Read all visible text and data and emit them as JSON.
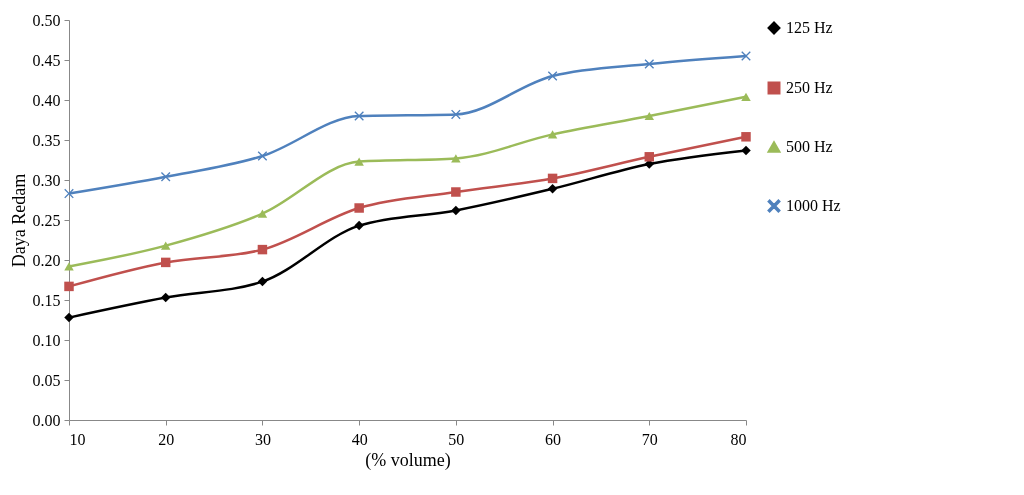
{
  "chart_data": {
    "type": "line",
    "xlabel": "(% volume)",
    "ylabel": "Daya Redam",
    "x": [
      10,
      20,
      30,
      40,
      50,
      60,
      70,
      80
    ],
    "xlim": [
      10,
      80
    ],
    "xticks": [
      10,
      20,
      30,
      40,
      50,
      60,
      70,
      80
    ],
    "ylim": [
      0,
      0.5
    ],
    "yticks": [
      {
        "value": 0,
        "label": "0.00"
      },
      {
        "value": 0.05,
        "label": "0.05"
      },
      {
        "value": 0.1,
        "label": "0.10"
      },
      {
        "value": 0.15,
        "label": "0.15"
      },
      {
        "value": 0.2,
        "label": "0.20"
      },
      {
        "value": 0.25,
        "label": "0.25"
      },
      {
        "value": 0.3,
        "label": "0.30"
      },
      {
        "value": 0.35,
        "label": "0.35"
      },
      {
        "value": 0.4,
        "label": "0.40"
      },
      {
        "value": 0.45,
        "label": "0.45"
      },
      {
        "value": 0.5,
        "label": "0.50"
      }
    ],
    "grid": false,
    "legend": "right",
    "line_style": "solid",
    "series": [
      {
        "name": "125 Hz",
        "color": "#000000",
        "marker": "diamond",
        "values": [
          0.128,
          0.153,
          0.173,
          0.243,
          0.262,
          0.289,
          0.32,
          0.337
        ]
      },
      {
        "name": "250 Hz",
        "color": "#c0504d",
        "marker": "square",
        "values": [
          0.167,
          0.197,
          0.213,
          0.265,
          0.285,
          0.302,
          0.329,
          0.354
        ]
      },
      {
        "name": "500 Hz",
        "color": "#9bbb59",
        "marker": "triangle",
        "values": [
          0.192,
          0.218,
          0.258,
          0.323,
          0.327,
          0.357,
          0.38,
          0.404
        ]
      },
      {
        "name": "1000 Hz",
        "color": "#4f81bd",
        "marker": "cross",
        "values": [
          0.283,
          0.304,
          0.33,
          0.38,
          0.382,
          0.43,
          0.445,
          0.455
        ]
      }
    ]
  }
}
